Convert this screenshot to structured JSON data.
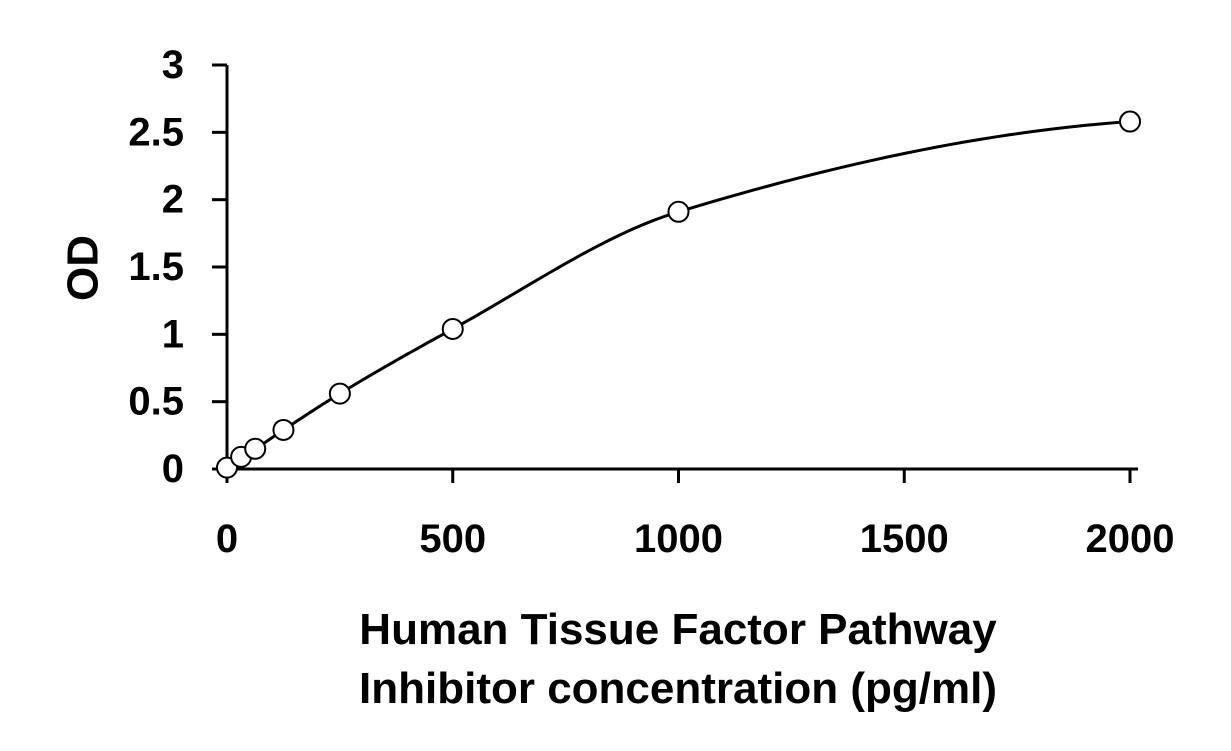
{
  "chart_data": {
    "type": "scatter",
    "title": "",
    "xlabel_lines": [
      "Human Tissue Factor Pathway",
      "Inhibitor concentration (pg/ml)"
    ],
    "ylabel": "OD",
    "xlim": [
      0,
      2000
    ],
    "ylim": [
      0,
      3
    ],
    "x_ticks": [
      "0",
      "500",
      "1000",
      "1500",
      "2000"
    ],
    "y_ticks": [
      "0",
      "0.5",
      "1",
      "1.5",
      "2",
      "2.5",
      "3"
    ],
    "grid": false,
    "legend": "none",
    "series": [
      {
        "points": [
          {
            "x": 0,
            "y": 0.01
          },
          {
            "x": 31.25,
            "y": 0.09
          },
          {
            "x": 62.5,
            "y": 0.15
          },
          {
            "x": 125,
            "y": 0.29
          },
          {
            "x": 250,
            "y": 0.56
          },
          {
            "x": 500,
            "y": 1.04
          },
          {
            "x": 1000,
            "y": 1.91
          },
          {
            "x": 2000,
            "y": 2.58
          }
        ],
        "fit_curve": true
      }
    ],
    "colors": {
      "line": "#000000",
      "marker_fill": "#ffffff",
      "marker_stroke": "#000000"
    }
  }
}
